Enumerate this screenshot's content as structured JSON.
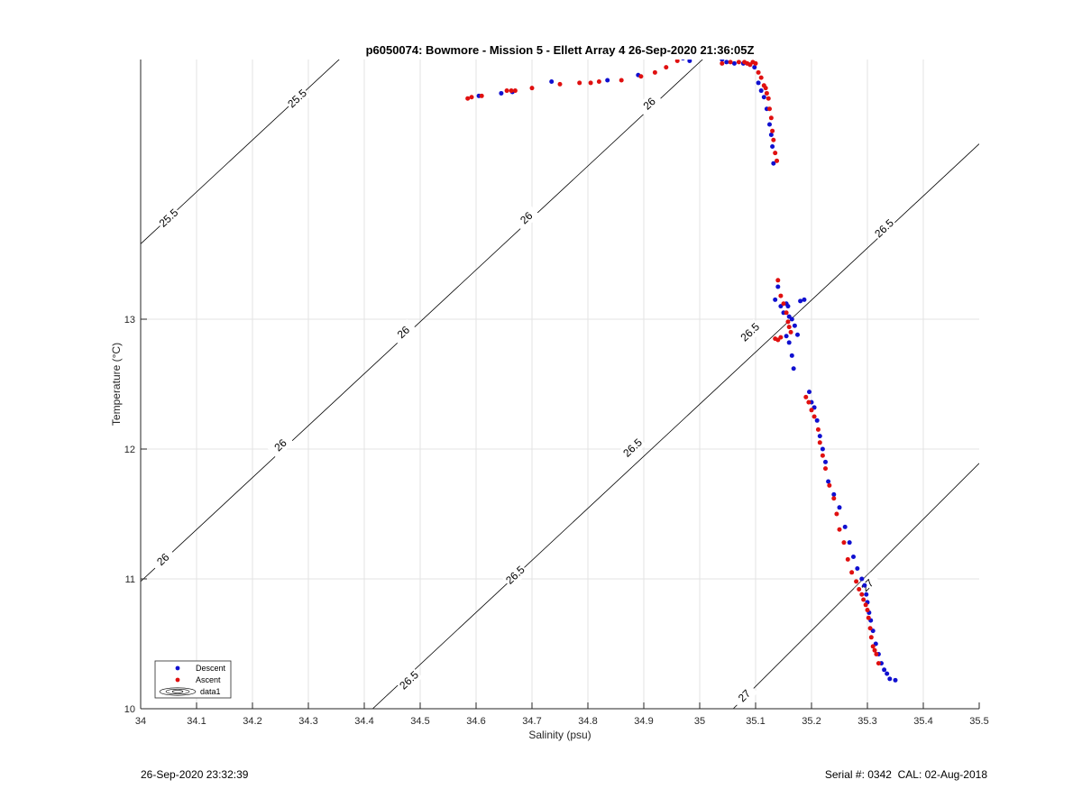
{
  "footer": {
    "timestamp": "26-Sep-2020 23:32:39",
    "serial": "Serial #: 0342  CAL: 02-Aug-2018"
  },
  "colors": {
    "descent": "#1010d0",
    "ascent": "#e01010",
    "grid": "#e3e3e3",
    "contour": "#000000"
  },
  "chart_data": {
    "type": "scatter",
    "title": "p6050074: Bowmore - Mission 5 - Ellett Array 4 26-Sep-2020 21:36:05Z",
    "xlabel": "Salinity (psu)",
    "ylabel": "Temperature (°C)",
    "xlim": [
      34,
      35.5
    ],
    "ylim": [
      10,
      15
    ],
    "x_ticks": [
      "34",
      "34.1",
      "34.2",
      "34.3",
      "34.4",
      "34.5",
      "34.6",
      "34.7",
      "34.8",
      "34.9",
      "35",
      "35.1",
      "35.2",
      "35.3",
      "35.4",
      "35.5"
    ],
    "y_ticks": [
      "10",
      "11",
      "12",
      "13"
    ],
    "grid": true,
    "legend": {
      "position": "bottom-left",
      "entries": [
        "Descent",
        "Ascent",
        "data1"
      ]
    },
    "density_contours": [
      {
        "level": "25.5",
        "points": [
          [
            34.0,
            13.58
          ],
          [
            35.0,
            17.58
          ]
        ],
        "labels": [
          {
            "x": 34.05,
            "y": 13.78
          },
          {
            "x": 34.28,
            "y": 14.7
          }
        ]
      },
      {
        "level": "26",
        "points": [
          [
            34.0,
            10.98
          ],
          [
            35.5,
            16.98
          ]
        ],
        "labels": [
          {
            "x": 34.04,
            "y": 11.15
          },
          {
            "x": 34.25,
            "y": 12.03
          },
          {
            "x": 34.47,
            "y": 12.9
          },
          {
            "x": 34.69,
            "y": 13.78
          },
          {
            "x": 34.91,
            "y": 14.66
          }
        ]
      },
      {
        "level": "26.5",
        "points": [
          [
            34.415,
            10.0
          ],
          [
            35.5,
            14.35
          ]
        ],
        "labels": [
          {
            "x": 34.48,
            "y": 10.22
          },
          {
            "x": 34.67,
            "y": 11.03
          },
          {
            "x": 34.88,
            "y": 12.01
          },
          {
            "x": 35.09,
            "y": 12.9
          },
          {
            "x": 35.33,
            "y": 13.7
          }
        ]
      },
      {
        "level": "27",
        "points": [
          [
            35.06,
            10.0
          ],
          [
            35.5,
            11.89
          ]
        ],
        "labels": [
          {
            "x": 35.08,
            "y": 10.1
          },
          {
            "x": 35.3,
            "y": 10.95
          }
        ]
      }
    ],
    "series": [
      {
        "name": "Descent",
        "x": [
          34.605,
          34.645,
          34.665,
          34.735,
          34.835,
          34.89,
          34.97,
          34.982,
          35.015,
          35.03,
          35.04,
          35.048,
          35.062,
          35.078,
          35.09,
          35.098,
          35.105,
          35.11,
          35.115,
          35.12,
          35.125,
          35.128,
          35.13,
          35.132,
          35.135,
          35.14,
          35.145,
          35.15,
          35.155,
          35.158,
          35.16,
          35.165,
          35.17,
          35.175,
          35.18,
          35.187,
          35.155,
          35.16,
          35.165,
          35.168,
          35.196,
          35.2,
          35.205,
          35.21,
          35.215,
          35.22,
          35.225,
          35.23,
          35.24,
          35.25,
          35.26,
          35.268,
          35.275,
          35.282,
          35.29,
          35.295,
          35.298,
          35.3,
          35.303,
          35.306,
          35.31,
          35.315,
          35.32,
          35.325,
          35.33,
          35.335,
          35.34,
          35.35
        ],
        "y": [
          14.72,
          14.74,
          14.75,
          14.83,
          14.84,
          14.88,
          15.01,
          14.99,
          15.02,
          15.02,
          15.0,
          14.98,
          14.97,
          14.97,
          14.96,
          14.94,
          14.82,
          14.76,
          14.71,
          14.62,
          14.5,
          14.42,
          14.33,
          14.2,
          13.15,
          13.25,
          13.1,
          13.05,
          13.12,
          13.1,
          13.02,
          13.0,
          12.95,
          12.88,
          13.14,
          13.15,
          12.87,
          12.82,
          12.72,
          12.62,
          12.44,
          12.36,
          12.32,
          12.22,
          12.1,
          12.0,
          11.9,
          11.75,
          11.65,
          11.55,
          11.4,
          11.28,
          11.17,
          11.08,
          11.0,
          10.95,
          10.88,
          10.82,
          10.74,
          10.68,
          10.6,
          10.5,
          10.42,
          10.35,
          10.3,
          10.27,
          10.23,
          10.22
        ]
      },
      {
        "name": "Ascent",
        "x": [
          34.585,
          34.592,
          34.61,
          34.655,
          34.663,
          34.67,
          34.7,
          34.75,
          34.785,
          34.805,
          34.82,
          34.86,
          34.895,
          34.92,
          34.94,
          34.96,
          35.04,
          35.055,
          35.07,
          35.08,
          35.085,
          35.09,
          35.095,
          35.1,
          35.105,
          35.11,
          35.115,
          35.118,
          35.12,
          35.123,
          35.125,
          35.128,
          35.13,
          35.132,
          35.135,
          35.138,
          35.14,
          35.145,
          35.15,
          35.155,
          35.158,
          35.16,
          35.163,
          35.135,
          35.14,
          35.145,
          35.19,
          35.195,
          35.2,
          35.205,
          35.212,
          35.215,
          35.22,
          35.225,
          35.232,
          35.24,
          35.245,
          35.25,
          35.258,
          35.265,
          35.272,
          35.28,
          35.285,
          35.29,
          35.293,
          35.297,
          35.3,
          35.302,
          35.305,
          35.307,
          35.31,
          35.313,
          35.316,
          35.32
        ],
        "y": [
          14.7,
          14.71,
          14.72,
          14.76,
          14.76,
          14.76,
          14.78,
          14.81,
          14.82,
          14.82,
          14.83,
          14.84,
          14.87,
          14.9,
          14.94,
          14.99,
          14.97,
          14.98,
          14.98,
          14.98,
          14.97,
          14.96,
          14.98,
          14.97,
          14.9,
          14.86,
          14.8,
          14.78,
          14.74,
          14.7,
          14.62,
          14.55,
          14.45,
          14.38,
          14.28,
          14.22,
          13.3,
          13.18,
          13.12,
          13.05,
          12.98,
          12.94,
          12.9,
          12.85,
          12.84,
          12.86,
          12.4,
          12.36,
          12.3,
          12.25,
          12.15,
          12.05,
          11.95,
          11.85,
          11.72,
          11.62,
          11.5,
          11.38,
          11.28,
          11.15,
          11.05,
          10.98,
          10.92,
          10.88,
          10.84,
          10.8,
          10.76,
          10.7,
          10.62,
          10.55,
          10.48,
          10.45,
          10.42,
          10.35
        ]
      }
    ]
  }
}
